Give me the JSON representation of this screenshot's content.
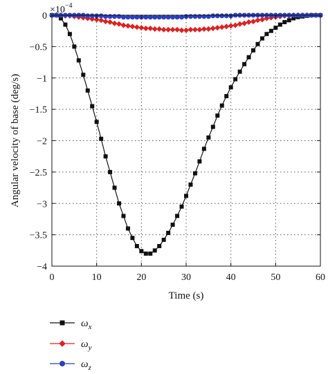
{
  "chart_data": {
    "type": "line",
    "xlabel": "Time (s)",
    "ylabel": "Angular velocity of base (deg/s)",
    "scale_label": "×10",
    "scale_exponent": "−4",
    "xlim": [
      0,
      60
    ],
    "ylim": [
      -4,
      0
    ],
    "x_ticks": [
      0,
      10,
      20,
      30,
      40,
      50,
      60
    ],
    "y_ticks": [
      0,
      -0.5,
      -1,
      -1.5,
      -2,
      -2.5,
      -3,
      -3.5,
      -4
    ],
    "x_tick_labels": [
      "0",
      "10",
      "20",
      "30",
      "40",
      "50",
      "60"
    ],
    "y_tick_labels": [
      "0",
      "−0.5",
      "−1",
      "−1.5",
      "−2",
      "−2.5",
      "−3",
      "−3.5",
      "−4"
    ],
    "grid": true,
    "legend_position": "below",
    "series": [
      {
        "name": "ω",
        "subscript": "x",
        "color": "#111111",
        "marker": "square",
        "x": [
          0,
          1,
          2,
          3,
          4,
          5,
          6,
          7,
          8,
          9,
          10,
          11,
          12,
          13,
          14,
          15,
          16,
          17,
          18,
          19,
          20,
          21,
          22,
          23,
          24,
          25,
          26,
          27,
          28,
          29,
          30,
          31,
          32,
          33,
          34,
          35,
          36,
          37,
          38,
          39,
          40,
          41,
          42,
          43,
          44,
          45,
          46,
          47,
          48,
          49,
          50,
          51,
          52,
          53,
          54,
          55,
          56,
          57,
          58,
          59,
          60
        ],
        "values": [
          0,
          0,
          -0.05,
          -0.15,
          -0.3,
          -0.5,
          -0.72,
          -0.95,
          -1.2,
          -1.45,
          -1.7,
          -1.97,
          -2.25,
          -2.5,
          -2.75,
          -3.0,
          -3.2,
          -3.4,
          -3.55,
          -3.68,
          -3.76,
          -3.8,
          -3.8,
          -3.75,
          -3.68,
          -3.58,
          -3.47,
          -3.34,
          -3.2,
          -3.05,
          -2.88,
          -2.7,
          -2.52,
          -2.33,
          -2.13,
          -1.95,
          -1.78,
          -1.6,
          -1.44,
          -1.29,
          -1.15,
          -1.02,
          -0.9,
          -0.78,
          -0.67,
          -0.56,
          -0.46,
          -0.37,
          -0.3,
          -0.25,
          -0.2,
          -0.15,
          -0.11,
          -0.08,
          -0.05,
          -0.03,
          -0.02,
          -0.01,
          0,
          0,
          0
        ]
      },
      {
        "name": "ω",
        "subscript": "y",
        "color": "#e02020",
        "marker": "diamond",
        "x": [
          0,
          1,
          2,
          3,
          4,
          5,
          6,
          7,
          8,
          9,
          10,
          11,
          12,
          13,
          14,
          15,
          16,
          17,
          18,
          19,
          20,
          21,
          22,
          23,
          24,
          25,
          26,
          27,
          28,
          29,
          30,
          31,
          32,
          33,
          34,
          35,
          36,
          37,
          38,
          39,
          40,
          41,
          42,
          43,
          44,
          45,
          46,
          47,
          48,
          49,
          50,
          51,
          52,
          53,
          54,
          55,
          56,
          57,
          58,
          59,
          60
        ],
        "values": [
          0,
          0,
          0,
          -0.01,
          -0.01,
          -0.02,
          -0.03,
          -0.04,
          -0.05,
          -0.06,
          -0.07,
          -0.08,
          -0.1,
          -0.11,
          -0.13,
          -0.14,
          -0.16,
          -0.17,
          -0.18,
          -0.19,
          -0.2,
          -0.21,
          -0.21,
          -0.22,
          -0.22,
          -0.23,
          -0.23,
          -0.23,
          -0.23,
          -0.24,
          -0.24,
          -0.23,
          -0.23,
          -0.23,
          -0.22,
          -0.22,
          -0.21,
          -0.2,
          -0.19,
          -0.18,
          -0.17,
          -0.16,
          -0.14,
          -0.13,
          -0.11,
          -0.1,
          -0.08,
          -0.07,
          -0.05,
          -0.04,
          -0.03,
          -0.02,
          -0.01,
          -0.01,
          0,
          0,
          0,
          0,
          0,
          0,
          0
        ]
      },
      {
        "name": "ω",
        "subscript": "z",
        "color": "#2b3fbf",
        "marker": "circle",
        "x": [
          0,
          1,
          2,
          3,
          4,
          5,
          6,
          7,
          8,
          9,
          10,
          11,
          12,
          13,
          14,
          15,
          16,
          17,
          18,
          19,
          20,
          21,
          22,
          23,
          24,
          25,
          26,
          27,
          28,
          29,
          30,
          31,
          32,
          33,
          34,
          35,
          36,
          37,
          38,
          39,
          40,
          41,
          42,
          43,
          44,
          45,
          46,
          47,
          48,
          49,
          50,
          51,
          52,
          53,
          54,
          55,
          56,
          57,
          58,
          59,
          60
        ],
        "values": [
          0,
          0,
          0,
          0,
          0,
          0,
          0,
          0,
          -0.01,
          -0.01,
          -0.01,
          -0.01,
          -0.02,
          -0.02,
          -0.02,
          -0.02,
          -0.03,
          -0.03,
          -0.03,
          -0.03,
          -0.03,
          -0.03,
          -0.03,
          -0.03,
          -0.03,
          -0.03,
          -0.03,
          -0.03,
          -0.03,
          -0.03,
          -0.02,
          -0.02,
          -0.02,
          -0.02,
          -0.02,
          -0.02,
          -0.01,
          -0.01,
          -0.01,
          -0.01,
          -0.01,
          0,
          0,
          0,
          0,
          0,
          0,
          0,
          0,
          0,
          0,
          0,
          0,
          0,
          0,
          0,
          0,
          0,
          0,
          0,
          0
        ]
      }
    ]
  }
}
